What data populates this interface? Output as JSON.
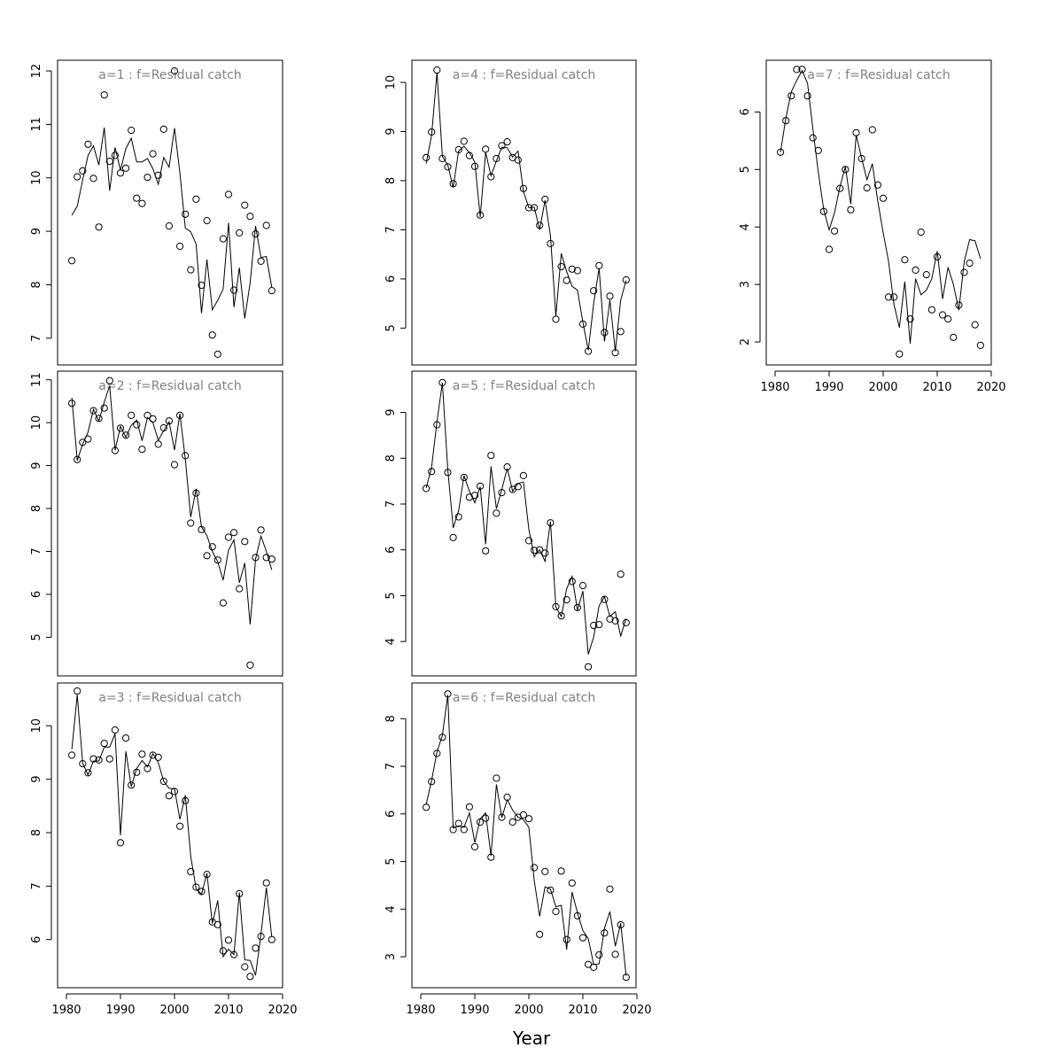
{
  "xlabel": "Year",
  "chart_data": [
    {
      "type": "scatter",
      "title": "a=1  :  f=Residual catch",
      "xlim": [
        1980,
        2020
      ],
      "ylim": [
        6.5,
        12.2
      ],
      "x_ticks": [
        1980,
        1990,
        2000,
        2010,
        2020
      ],
      "y_ticks": [
        7,
        8,
        9,
        10,
        11,
        12
      ],
      "x_axis_drawn": false,
      "x": [
        1981,
        1982,
        1983,
        1984,
        1985,
        1986,
        1987,
        1988,
        1989,
        1990,
        1991,
        1992,
        1993,
        1994,
        1995,
        1996,
        1997,
        1998,
        1999,
        2000,
        2001,
        2002,
        2003,
        2004,
        2005,
        2006,
        2007,
        2008,
        2009,
        2010,
        2011,
        2012,
        2013,
        2014,
        2015,
        2016,
        2017,
        2018
      ],
      "series": [
        {
          "name": "observed",
          "values": [
            8.45,
            10.02,
            10.13,
            10.63,
            9.99,
            9.08,
            11.55,
            10.31,
            10.42,
            10.09,
            10.18,
            10.89,
            9.62,
            9.52,
            10.01,
            10.45,
            10.05,
            10.91,
            9.1,
            12.0,
            8.72,
            9.32,
            8.28,
            9.6,
            7.99,
            9.2,
            7.06,
            6.7,
            8.86,
            9.69,
            7.9,
            8.97,
            9.49,
            9.28,
            8.95,
            8.44,
            9.11,
            7.89
          ]
        },
        {
          "name": "fitted",
          "values": [
            9.3,
            9.47,
            9.96,
            10.42,
            10.6,
            10.24,
            10.94,
            9.76,
            10.57,
            10.14,
            10.55,
            10.74,
            10.3,
            10.3,
            10.36,
            10.17,
            9.88,
            10.38,
            10.2,
            10.93,
            10.09,
            9.06,
            8.99,
            8.76,
            7.47,
            8.47,
            7.53,
            7.71,
            7.92,
            9.16,
            7.58,
            8.32,
            7.37,
            8.04,
            9.1,
            8.51,
            8.53,
            7.95
          ]
        }
      ]
    },
    {
      "type": "scatter",
      "title": "a=2  :  f=Residual catch",
      "xlim": [
        1980,
        2020
      ],
      "ylim": [
        4.1,
        11.2
      ],
      "x_ticks": [
        1980,
        1990,
        2000,
        2010,
        2020
      ],
      "y_ticks": [
        5,
        6,
        7,
        8,
        9,
        10,
        11
      ],
      "x_axis_drawn": false,
      "x": [
        1981,
        1982,
        1983,
        1984,
        1985,
        1986,
        1987,
        1988,
        1989,
        1990,
        1991,
        1992,
        1993,
        1994,
        1995,
        1996,
        1997,
        1998,
        1999,
        2000,
        2001,
        2002,
        2003,
        2004,
        2005,
        2006,
        2007,
        2008,
        2009,
        2010,
        2011,
        2012,
        2013,
        2014,
        2015,
        2016,
        2017,
        2018
      ],
      "series": [
        {
          "name": "observed",
          "values": [
            10.45,
            9.14,
            9.54,
            9.62,
            10.28,
            10.1,
            10.34,
            10.98,
            9.35,
            9.87,
            9.71,
            10.17,
            9.95,
            9.38,
            10.17,
            10.09,
            9.5,
            9.88,
            10.04,
            9.02,
            10.17,
            9.23,
            7.66,
            8.36,
            7.51,
            6.9,
            7.11,
            6.8,
            5.8,
            7.33,
            7.44,
            6.13,
            7.23,
            4.35,
            6.86,
            7.5,
            6.86,
            6.82
          ]
        },
        {
          "name": "fitted",
          "values": [
            10.58,
            9.12,
            9.5,
            9.78,
            10.31,
            10.04,
            10.48,
            10.86,
            9.36,
            9.91,
            9.66,
            9.94,
            10.06,
            9.58,
            10.12,
            10.0,
            9.59,
            9.81,
            10.02,
            9.36,
            10.21,
            9.15,
            7.8,
            8.46,
            7.57,
            7.37,
            7.0,
            6.76,
            6.33,
            7.03,
            7.27,
            6.27,
            6.73,
            5.3,
            6.82,
            7.36,
            7.0,
            6.57
          ]
        }
      ]
    },
    {
      "type": "scatter",
      "title": "a=3  :  f=Residual catch",
      "xlim": [
        1980,
        2020
      ],
      "ylim": [
        5.1,
        10.8
      ],
      "x_ticks": [
        1980,
        1990,
        2000,
        2010,
        2020
      ],
      "y_ticks": [
        6,
        7,
        8,
        9,
        10
      ],
      "x_axis_drawn": true,
      "x": [
        1981,
        1982,
        1983,
        1984,
        1985,
        1986,
        1987,
        1988,
        1989,
        1990,
        1991,
        1992,
        1993,
        1994,
        1995,
        1996,
        1997,
        1998,
        1999,
        2000,
        2001,
        2002,
        2003,
        2004,
        2005,
        2006,
        2007,
        2008,
        2009,
        2010,
        2011,
        2012,
        2013,
        2014,
        2015,
        2016,
        2017,
        2018
      ],
      "series": [
        {
          "name": "observed",
          "values": [
            9.45,
            10.65,
            9.29,
            9.12,
            9.38,
            9.36,
            9.67,
            9.38,
            9.92,
            7.81,
            9.77,
            8.89,
            9.13,
            9.47,
            9.2,
            9.45,
            9.41,
            8.96,
            8.69,
            8.77,
            8.12,
            8.6,
            7.27,
            6.98,
            6.9,
            7.22,
            6.33,
            6.28,
            5.79,
            5.99,
            5.72,
            6.86,
            5.49,
            5.31,
            5.84,
            6.06,
            7.06,
            6.0
          ]
        },
        {
          "name": "fitted",
          "values": [
            9.56,
            10.58,
            9.3,
            9.08,
            9.34,
            9.34,
            9.6,
            9.6,
            9.85,
            7.95,
            9.52,
            8.86,
            9.2,
            9.35,
            9.23,
            9.48,
            9.31,
            8.96,
            8.83,
            8.82,
            8.25,
            8.7,
            7.56,
            6.95,
            6.85,
            7.24,
            6.3,
            6.73,
            5.68,
            5.82,
            5.72,
            6.88,
            5.62,
            5.61,
            5.33,
            6.1,
            6.97,
            6.05
          ]
        }
      ]
    },
    {
      "type": "scatter",
      "title": "a=4  :  f=Residual catch",
      "xlim": [
        1980,
        2020
      ],
      "ylim": [
        4.25,
        10.45
      ],
      "x_ticks": [
        1980,
        1990,
        2000,
        2010,
        2020
      ],
      "y_ticks": [
        5,
        6,
        7,
        8,
        9,
        10
      ],
      "x_axis_drawn": false,
      "x": [
        1981,
        1982,
        1983,
        1984,
        1985,
        1986,
        1987,
        1988,
        1989,
        1990,
        1991,
        1992,
        1993,
        1994,
        1995,
        1996,
        1997,
        1998,
        1999,
        2000,
        2001,
        2002,
        2003,
        2004,
        2005,
        2006,
        2007,
        2008,
        2009,
        2010,
        2011,
        2012,
        2013,
        2014,
        2015,
        2016,
        2017,
        2018
      ],
      "series": [
        {
          "name": "observed",
          "values": [
            8.47,
            8.99,
            10.25,
            8.45,
            8.28,
            7.94,
            8.63,
            8.8,
            8.51,
            8.29,
            7.3,
            8.64,
            8.08,
            8.45,
            8.71,
            8.79,
            8.47,
            8.42,
            7.84,
            7.45,
            7.45,
            7.09,
            7.62,
            6.72,
            5.18,
            6.25,
            5.97,
            6.2,
            6.17,
            5.08,
            4.53,
            5.76,
            6.27,
            4.91,
            5.65,
            4.5,
            4.93,
            5.98
          ]
        },
        {
          "name": "fitted",
          "values": [
            8.35,
            8.92,
            10.2,
            8.49,
            8.32,
            7.86,
            8.6,
            8.7,
            8.57,
            8.38,
            7.26,
            8.58,
            8.1,
            8.4,
            8.68,
            8.67,
            8.48,
            8.6,
            7.78,
            7.45,
            7.46,
            7.0,
            7.6,
            6.88,
            5.25,
            6.52,
            6.15,
            5.85,
            5.77,
            5.12,
            4.55,
            5.5,
            6.22,
            4.73,
            5.57,
            4.53,
            5.57,
            5.97
          ]
        }
      ]
    },
    {
      "type": "scatter",
      "title": "a=5  :  f=Residual catch",
      "xlim": [
        1980,
        2020
      ],
      "ylim": [
        3.25,
        9.9
      ],
      "x_ticks": [
        1980,
        1990,
        2000,
        2010,
        2020
      ],
      "y_ticks": [
        4,
        5,
        6,
        7,
        8,
        9
      ],
      "x_axis_drawn": false,
      "x": [
        1981,
        1982,
        1983,
        1984,
        1985,
        1986,
        1987,
        1988,
        1989,
        1990,
        1991,
        1992,
        1993,
        1994,
        1995,
        1996,
        1997,
        1998,
        1999,
        2000,
        2001,
        2002,
        2003,
        2004,
        2005,
        2006,
        2007,
        2008,
        2009,
        2010,
        2011,
        2012,
        2013,
        2014,
        2015,
        2016,
        2017,
        2018
      ],
      "series": [
        {
          "name": "observed",
          "values": [
            7.34,
            7.71,
            8.73,
            9.65,
            7.69,
            6.27,
            6.72,
            7.58,
            7.15,
            7.19,
            7.39,
            5.98,
            8.06,
            6.8,
            7.25,
            7.81,
            7.32,
            7.38,
            7.62,
            6.2,
            5.99,
            6.0,
            5.93,
            6.59,
            4.76,
            4.56,
            4.91,
            5.31,
            4.74,
            5.22,
            3.45,
            4.35,
            4.37,
            4.92,
            4.49,
            4.45,
            5.47,
            4.41
          ]
        },
        {
          "name": "fitted",
          "values": [
            7.35,
            7.8,
            8.8,
            9.65,
            7.75,
            6.48,
            6.85,
            7.62,
            7.28,
            7.03,
            7.38,
            6.12,
            7.82,
            6.9,
            7.32,
            7.78,
            7.28,
            7.45,
            7.48,
            6.45,
            5.85,
            6.0,
            5.75,
            6.62,
            4.75,
            4.55,
            5.15,
            5.42,
            4.68,
            5.1,
            3.72,
            4.1,
            4.78,
            4.98,
            4.55,
            4.65,
            4.12,
            4.5
          ]
        }
      ]
    },
    {
      "type": "scatter",
      "title": "a=6  :  f=Residual catch",
      "xlim": [
        1980,
        2020
      ],
      "ylim": [
        2.35,
        8.75
      ],
      "x_ticks": [
        1980,
        1990,
        2000,
        2010,
        2020
      ],
      "y_ticks": [
        3,
        4,
        5,
        6,
        7,
        8
      ],
      "x_axis_drawn": true,
      "x": [
        1981,
        1982,
        1983,
        1984,
        1985,
        1986,
        1987,
        1988,
        1989,
        1990,
        1991,
        1992,
        1993,
        1994,
        1995,
        1996,
        1997,
        1998,
        1999,
        2000,
        2001,
        2002,
        2003,
        2004,
        2005,
        2006,
        2007,
        2008,
        2009,
        2010,
        2011,
        2012,
        2013,
        2014,
        2015,
        2016,
        2017,
        2018
      ],
      "series": [
        {
          "name": "observed",
          "values": [
            6.14,
            6.68,
            7.27,
            7.61,
            8.52,
            5.67,
            5.8,
            5.67,
            6.15,
            5.31,
            5.83,
            5.91,
            5.09,
            6.75,
            5.93,
            6.35,
            5.83,
            5.93,
            5.98,
            5.9,
            4.87,
            3.47,
            4.79,
            4.4,
            3.95,
            4.8,
            3.36,
            4.55,
            3.86,
            3.4,
            2.84,
            2.78,
            3.04,
            3.5,
            4.42,
            3.05,
            3.67,
            2.57
          ]
        },
        {
          "name": "fitted",
          "values": [
            6.2,
            6.7,
            7.3,
            7.65,
            8.5,
            5.7,
            5.75,
            5.72,
            6.02,
            5.4,
            5.9,
            6.02,
            5.12,
            6.62,
            5.92,
            6.3,
            6.08,
            5.93,
            5.88,
            5.72,
            4.6,
            3.85,
            4.47,
            4.42,
            4.05,
            4.08,
            3.15,
            4.36,
            3.92,
            3.55,
            3.38,
            2.84,
            2.85,
            3.6,
            3.95,
            3.22,
            3.7,
            2.6
          ]
        }
      ]
    },
    {
      "type": "scatter",
      "title": "a=7  :  f=Residual catch",
      "xlim": [
        1980,
        2020
      ],
      "ylim": [
        1.6,
        6.9
      ],
      "x_ticks": [
        1980,
        1990,
        2000,
        2010,
        2020
      ],
      "y_ticks": [
        2,
        3,
        4,
        5,
        6
      ],
      "x_axis_drawn": true,
      "x": [
        1981,
        1982,
        1983,
        1984,
        1985,
        1986,
        1987,
        1988,
        1989,
        1990,
        1991,
        1992,
        1993,
        1994,
        1995,
        1996,
        1997,
        1998,
        1999,
        2000,
        2001,
        2002,
        2003,
        2004,
        2005,
        2006,
        2007,
        2008,
        2009,
        2010,
        2011,
        2012,
        2013,
        2014,
        2015,
        2016,
        2017,
        2018
      ],
      "series": [
        {
          "name": "observed",
          "values": [
            5.3,
            5.85,
            6.28,
            6.74,
            6.74,
            6.28,
            5.55,
            5.33,
            4.27,
            3.61,
            3.93,
            4.67,
            5.0,
            4.3,
            5.64,
            5.19,
            4.68,
            5.69,
            4.73,
            4.5,
            2.78,
            2.78,
            1.79,
            3.43,
            2.4,
            3.25,
            3.91,
            3.17,
            2.56,
            3.48,
            2.47,
            2.4,
            2.08,
            2.64,
            3.21,
            3.37,
            2.3,
            1.94
          ]
        },
        {
          "name": "fitted",
          "values": [
            5.3,
            5.9,
            6.35,
            6.55,
            6.72,
            6.5,
            5.7,
            4.95,
            4.3,
            3.95,
            4.25,
            4.7,
            5.05,
            4.4,
            5.6,
            5.2,
            4.82,
            5.1,
            4.45,
            3.9,
            3.4,
            2.65,
            2.25,
            3.05,
            1.97,
            3.1,
            2.82,
            2.9,
            3.1,
            3.58,
            2.75,
            3.3,
            3.0,
            2.55,
            3.4,
            3.78,
            3.76,
            3.45
          ]
        }
      ]
    }
  ]
}
